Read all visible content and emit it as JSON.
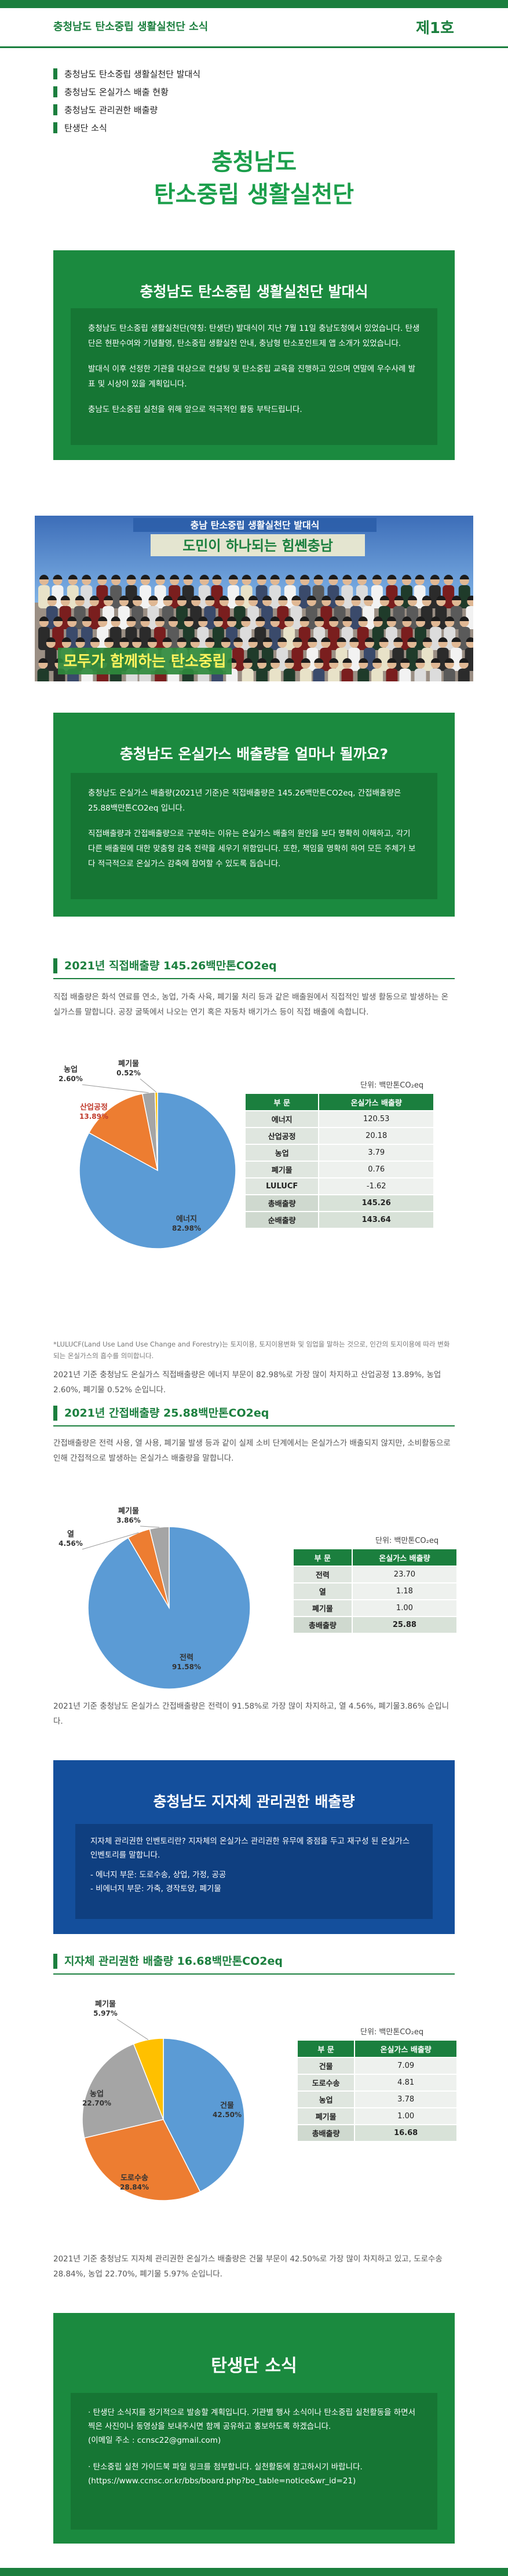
{
  "header": {
    "title": "충청남도 탄소중립 생활실천단 소식",
    "volume": "제1호"
  },
  "toc": [
    "충청남도 탄소중립 생활실천단 발대식",
    "충청남도 온실가스 배출 현황",
    "충청남도 관리권한 배출량",
    "탄생단 소식"
  ],
  "main_title": {
    "line1": "충청남도",
    "line2": "탄소중립 생활실천단"
  },
  "launch": {
    "title": "충청남도 탄소중립 생활실천단 발대식",
    "p1": "충청남도 탄소중립 생활실천단(약칭: 탄생단) 발대식이 지난 7월 11일 충남도청에서 있었습니다. 탄생단은 현판수여와 기념촬영, 탄소중립 생활실천 안내, 충남형 탄소포인트제 앱 소개가 있었습니다.",
    "p2": "발대식 이후 선정한 기관을 대상으로 컨설팅 및 탄소중립 교육을 진행하고 있으며 연말에 우수사례 발표 및 시상이 있을 계획입니다.",
    "p3": "충남도 탄소중립 실천을 위해 앞으로 적극적인 활동 부탁드립니다."
  },
  "photo": {
    "banner_top": "충남 탄소중립 생활실천단 발대식",
    "banner_mid": "도민이 하나되는 힘쎈충남",
    "banner_bottom": "모두가 함께하는 탄소중립"
  },
  "emission_box": {
    "title": "충청남도 온실가스 배출량을 얼마나 될까요?",
    "p1": "충청남도 온실가스 배출량(2021년 기준)은 직접배출량은 145.26백만톤CO2eq, 간접배출량은 25.88백만톤CO2eq 입니다.",
    "p2": "직접배출량과 간접배출량으로 구분하는 이유는 온실가스 배출의 원인을 보다 명확히 이해하고, 각기 다른 배출원에 대한 맞춤형 감축 전략을 세우기 위함입니다. 또한, 책임을 명확히 하여 모든 주체가 보다 적극적으로 온실가스 감축에 참여할 수 있도록 돕습니다."
  },
  "direct": {
    "heading": "2021년 직접배출량 145.26백만톤CO2eq",
    "desc": "직접 배출량은 화석 연료를 연소, 농업, 가축 사육, 폐기물 처리 등과 같은 배출원에서 직접적인 발생 활동으로 발생하는 온실가스를 말합니다. 공장 굴뚝에서 나오는 연기 혹은 자동차 배기가스 등이 직접 배출에 속합니다.",
    "unit": "단위: 백만톤CO₂eq",
    "table_header": [
      "부 문",
      "온실가스 배출량"
    ],
    "rows": [
      [
        "에너지",
        "120.53"
      ],
      [
        "산업공정",
        "20.18"
      ],
      [
        "농업",
        "3.79"
      ],
      [
        "폐기물",
        "0.76"
      ],
      [
        "LULUCF",
        "-1.62"
      ]
    ],
    "sum_rows": [
      [
        "총배출량",
        "145.26"
      ],
      [
        "순배출량",
        "143.64"
      ]
    ],
    "note": "*LULUCF(Land Use Land Use Change and Forestry)는 토지이용, 토지이용변화 및 임업을 말하는 것으로, 인간의 토지이용에 따라 변화되는 온실가스의 흡수를 의미합니다.",
    "summary": "2021년 기준 충청남도 온실가스 직접배출량은 에너지 부문이 82.98%로 가장 많이 차지하고 산업공정 13.89%, 농업 2.60%, 폐기물 0.52% 순입니다."
  },
  "indirect": {
    "heading": "2021년 간접배출량 25.88백만톤CO2eq",
    "desc": "간접배출량은 전력 사용, 열 사용, 폐기물 발생 등과 같이 실제 소비 단계에서는 온실가스가 배출되지 않지만, 소비활동으로 인해 간접적으로 발생하는 온실가스 배출량을 말합니다.",
    "unit": "단위: 백만톤CO₂eq",
    "table_header": [
      "부 문",
      "온실가스 배출량"
    ],
    "rows": [
      [
        "전력",
        "23.70"
      ],
      [
        "열",
        "1.18"
      ],
      [
        "폐기물",
        "1.00"
      ]
    ],
    "sum_rows": [
      [
        "총배출량",
        "25.88"
      ]
    ],
    "summary": "2021년 기준 충청남도 온실가스 간접배출량은 전력이 91.58%로 가장 많이 차지하고, 열 4.56%, 폐기물3.86% 순입니다."
  },
  "authority_box": {
    "title": "충청남도 지자체 관리권한 배출량",
    "p1": "지자체 관리권한 인벤토리란? 지자체의 온실가스 관리권한 유무에 중점을 두고 재구성 된 온실가스 인벤토리를 말합니다.",
    "p2": "- 에너지 부문: 도로수송, 상업, 가정, 공공",
    "p3": "- 비에너지 부문: 가축, 경작토양, 폐기물"
  },
  "authority": {
    "heading": "지자체 관리권한 배출량 16.68백만톤CO2eq",
    "unit": "단위: 백만톤CO₂eq",
    "table_header": [
      "부 문",
      "온실가스 배출량"
    ],
    "rows": [
      [
        "건물",
        "7.09"
      ],
      [
        "도로수송",
        "4.81"
      ],
      [
        "농업",
        "3.78"
      ],
      [
        "폐기물",
        "1.00"
      ]
    ],
    "sum_rows": [
      [
        "총배출량",
        "16.68"
      ]
    ],
    "summary": "2021년 기준 충청남도 지자체 관리권한 온실가스 배출량은 건물 부문이 42.50%로 가장 많이 차지하고 있고, 도로수송 28.84%, 농업 22.70%, 폐기물 5.97% 순입니다."
  },
  "news": {
    "title": "탄생단 소식",
    "p1": "· 탄생단 소식지를 정기적으로 발송할 계획입니다. 기관별 행사 소식이나 탄소중립 실천활동을 하면서 찍은 사진이나 동영상을 보내주시면 함께 공유하고 홍보하도록 하겠습니다.",
    "p2": "(이메일 주소 : ccnsc22@gmail.com)",
    "p3": "· 탄소중립 실천 가이드북 파일 링크를 첨부합니다. 실천활동에 참고하시기 바랍니다.",
    "p4": "(https://www.ccnsc.or.kr/bbs/board.php?bo_table=notice&wr_id=21)"
  },
  "chart_data": [
    {
      "type": "pie",
      "title": "2021년 직접배출량 145.26백만톤CO2eq",
      "categories": [
        "에너지",
        "산업공정",
        "농업",
        "폐기물"
      ],
      "values": [
        82.98,
        13.89,
        2.6,
        0.52
      ],
      "labels": [
        "82.98%",
        "13.89%",
        "2.60%",
        "0.52%"
      ],
      "colors": [
        "#5b9bd5",
        "#ed7d31",
        "#a5a5a5",
        "#ffc000"
      ]
    },
    {
      "type": "pie",
      "title": "2021년 간접배출량 25.88백만톤CO2eq",
      "categories": [
        "전력",
        "열",
        "폐기물"
      ],
      "values": [
        91.58,
        4.56,
        3.86
      ],
      "labels": [
        "91.58%",
        "4.56%",
        "3.86%"
      ],
      "colors": [
        "#5b9bd5",
        "#ed7d31",
        "#a5a5a5"
      ]
    },
    {
      "type": "pie",
      "title": "지자체 관리권한 배출량 16.68백만톤CO2eq",
      "categories": [
        "건물",
        "도로수송",
        "농업",
        "폐기물"
      ],
      "values": [
        42.5,
        28.84,
        22.7,
        5.97
      ],
      "labels": [
        "42.50%",
        "28.84%",
        "22.70%",
        "5.97%"
      ],
      "colors": [
        "#5b9bd5",
        "#ed7d31",
        "#a5a5a5",
        "#ffc000"
      ]
    }
  ]
}
